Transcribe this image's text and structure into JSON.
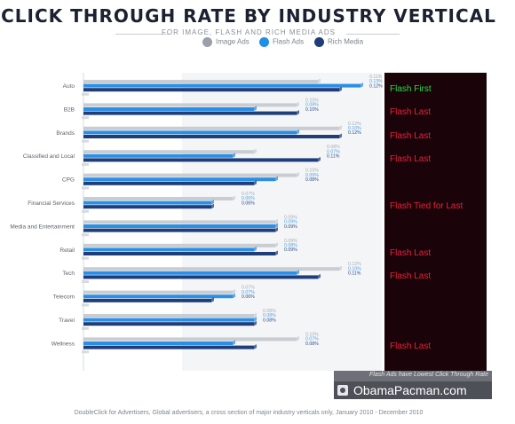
{
  "title": "CLICK THROUGH RATE BY INDUSTRY VERTICAL",
  "subtitle": "FOR IMAGE, FLASH AND RICH MEDIA ADS",
  "legend": [
    {
      "label": "Image Ads",
      "color": "#9a9fa8",
      "icon": "circle"
    },
    {
      "label": "Flash Ads",
      "color": "#1f8ee8",
      "icon": "circle"
    },
    {
      "label": "Rich Media",
      "color": "#1f3d78",
      "icon": "circle"
    }
  ],
  "colors": {
    "image": "#c9ccd1",
    "flash": "#2b8fe6",
    "rich": "#1f3d78",
    "panel": "#1a0409",
    "verdict_first": "#2bd84a",
    "verdict_last": "#e8213a"
  },
  "chart_data": {
    "type": "bar",
    "orientation": "horizontal",
    "categories": [
      "Auto",
      "B2B",
      "Brands",
      "Classified and Local",
      "CPG",
      "Financial Services",
      "Media and Entertainment",
      "Retail",
      "Tech",
      "Telecom",
      "Travel",
      "Wellness"
    ],
    "series": [
      {
        "name": "Image Ads",
        "values": [
          0.11,
          0.1,
          0.12,
          0.08,
          0.1,
          0.07,
          0.09,
          0.09,
          0.12,
          0.07,
          0.08,
          0.1
        ]
      },
      {
        "name": "Flash Ads",
        "values": [
          0.13,
          0.08,
          0.1,
          0.07,
          0.09,
          0.06,
          0.09,
          0.08,
          0.1,
          0.07,
          0.08,
          0.07
        ]
      },
      {
        "name": "Rich Media",
        "values": [
          0.12,
          0.1,
          0.12,
          0.11,
          0.08,
          0.06,
          0.09,
          0.09,
          0.11,
          0.06,
          0.08,
          0.08
        ]
      }
    ],
    "value_labels": [
      [
        "0.11%",
        "0.13%",
        "0.12%"
      ],
      [
        "0.10%",
        "0.08%",
        "0.10%"
      ],
      [
        "0.12%",
        "0.10%",
        "0.12%"
      ],
      [
        "0.08%",
        "0.07%",
        "0.11%"
      ],
      [
        "0.10%",
        "0.09%",
        "0.08%"
      ],
      [
        "0.07%",
        "0.06%",
        "0.06%"
      ],
      [
        "0.09%",
        "0.09%",
        "0.09%"
      ],
      [
        "0.09%",
        "0.08%",
        "0.09%"
      ],
      [
        "0.12%",
        "0.10%",
        "0.11%"
      ],
      [
        "0.07%",
        "0.07%",
        "0.06%"
      ],
      [
        "0.08%",
        "0.08%",
        "0.08%"
      ],
      [
        "0.10%",
        "0.07%",
        "0.08%"
      ]
    ],
    "verdicts": [
      "Flash First",
      "Flash Last",
      "Flash Last",
      "Flash Last",
      "",
      "Flash Tied for Last",
      "",
      "Flash Last",
      "Flash Last",
      "",
      "",
      "Flash Last"
    ],
    "xlim": [
      0,
      0.14
    ],
    "grid": false,
    "legend_position": "top-center"
  },
  "banner": {
    "text": "Flash Ads have Lowest Click Through Rate"
  },
  "brand": {
    "text": "ObamaPacman.com",
    "icon": "camera-icon"
  },
  "footer": {
    "source": "DoubleClick for Advertisers, Global advertisers, a cross section of major industry verticals only, January 2010 - December 2010"
  }
}
